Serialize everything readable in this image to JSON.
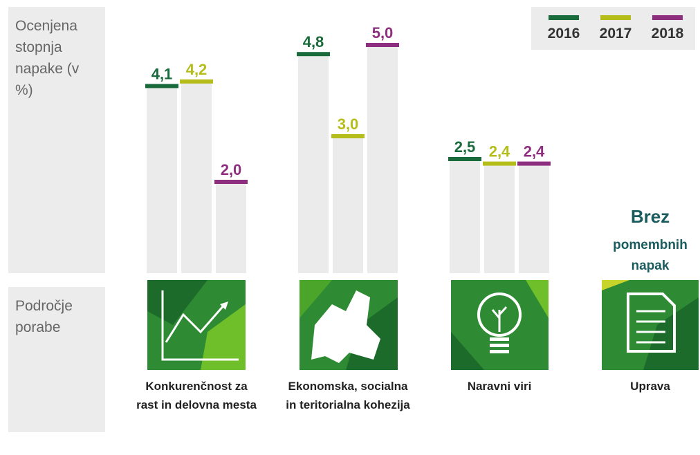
{
  "chart_data": {
    "type": "bar",
    "axis_label": "Ocenjena stopnja napake (v %)",
    "category_axis_label": "Področje porabe",
    "categories": [
      "Konkurenčnost za rast in delovna mesta",
      "Ekonomska, socialna in teritorialna kohezija",
      "Naravni viri",
      "Uprava"
    ],
    "series": [
      {
        "name": "2016",
        "color": "#1a6b3c",
        "values": [
          4.1,
          4.8,
          2.5,
          null
        ],
        "value_labels": [
          "4,1",
          "4,8",
          "2,5",
          null
        ]
      },
      {
        "name": "2017",
        "color": "#b5bd1a",
        "values": [
          4.2,
          3.0,
          2.4,
          null
        ],
        "value_labels": [
          "4,2",
          "3,0",
          "2,4",
          null
        ]
      },
      {
        "name": "2018",
        "color": "#8e2e7e",
        "values": [
          2.0,
          5.0,
          2.4,
          null
        ],
        "value_labels": [
          "2,0",
          "5,0",
          "2,4",
          null
        ]
      }
    ],
    "annotation": {
      "title": "Brez",
      "text": "pomembnih napak"
    },
    "legend": "top-right"
  }
}
